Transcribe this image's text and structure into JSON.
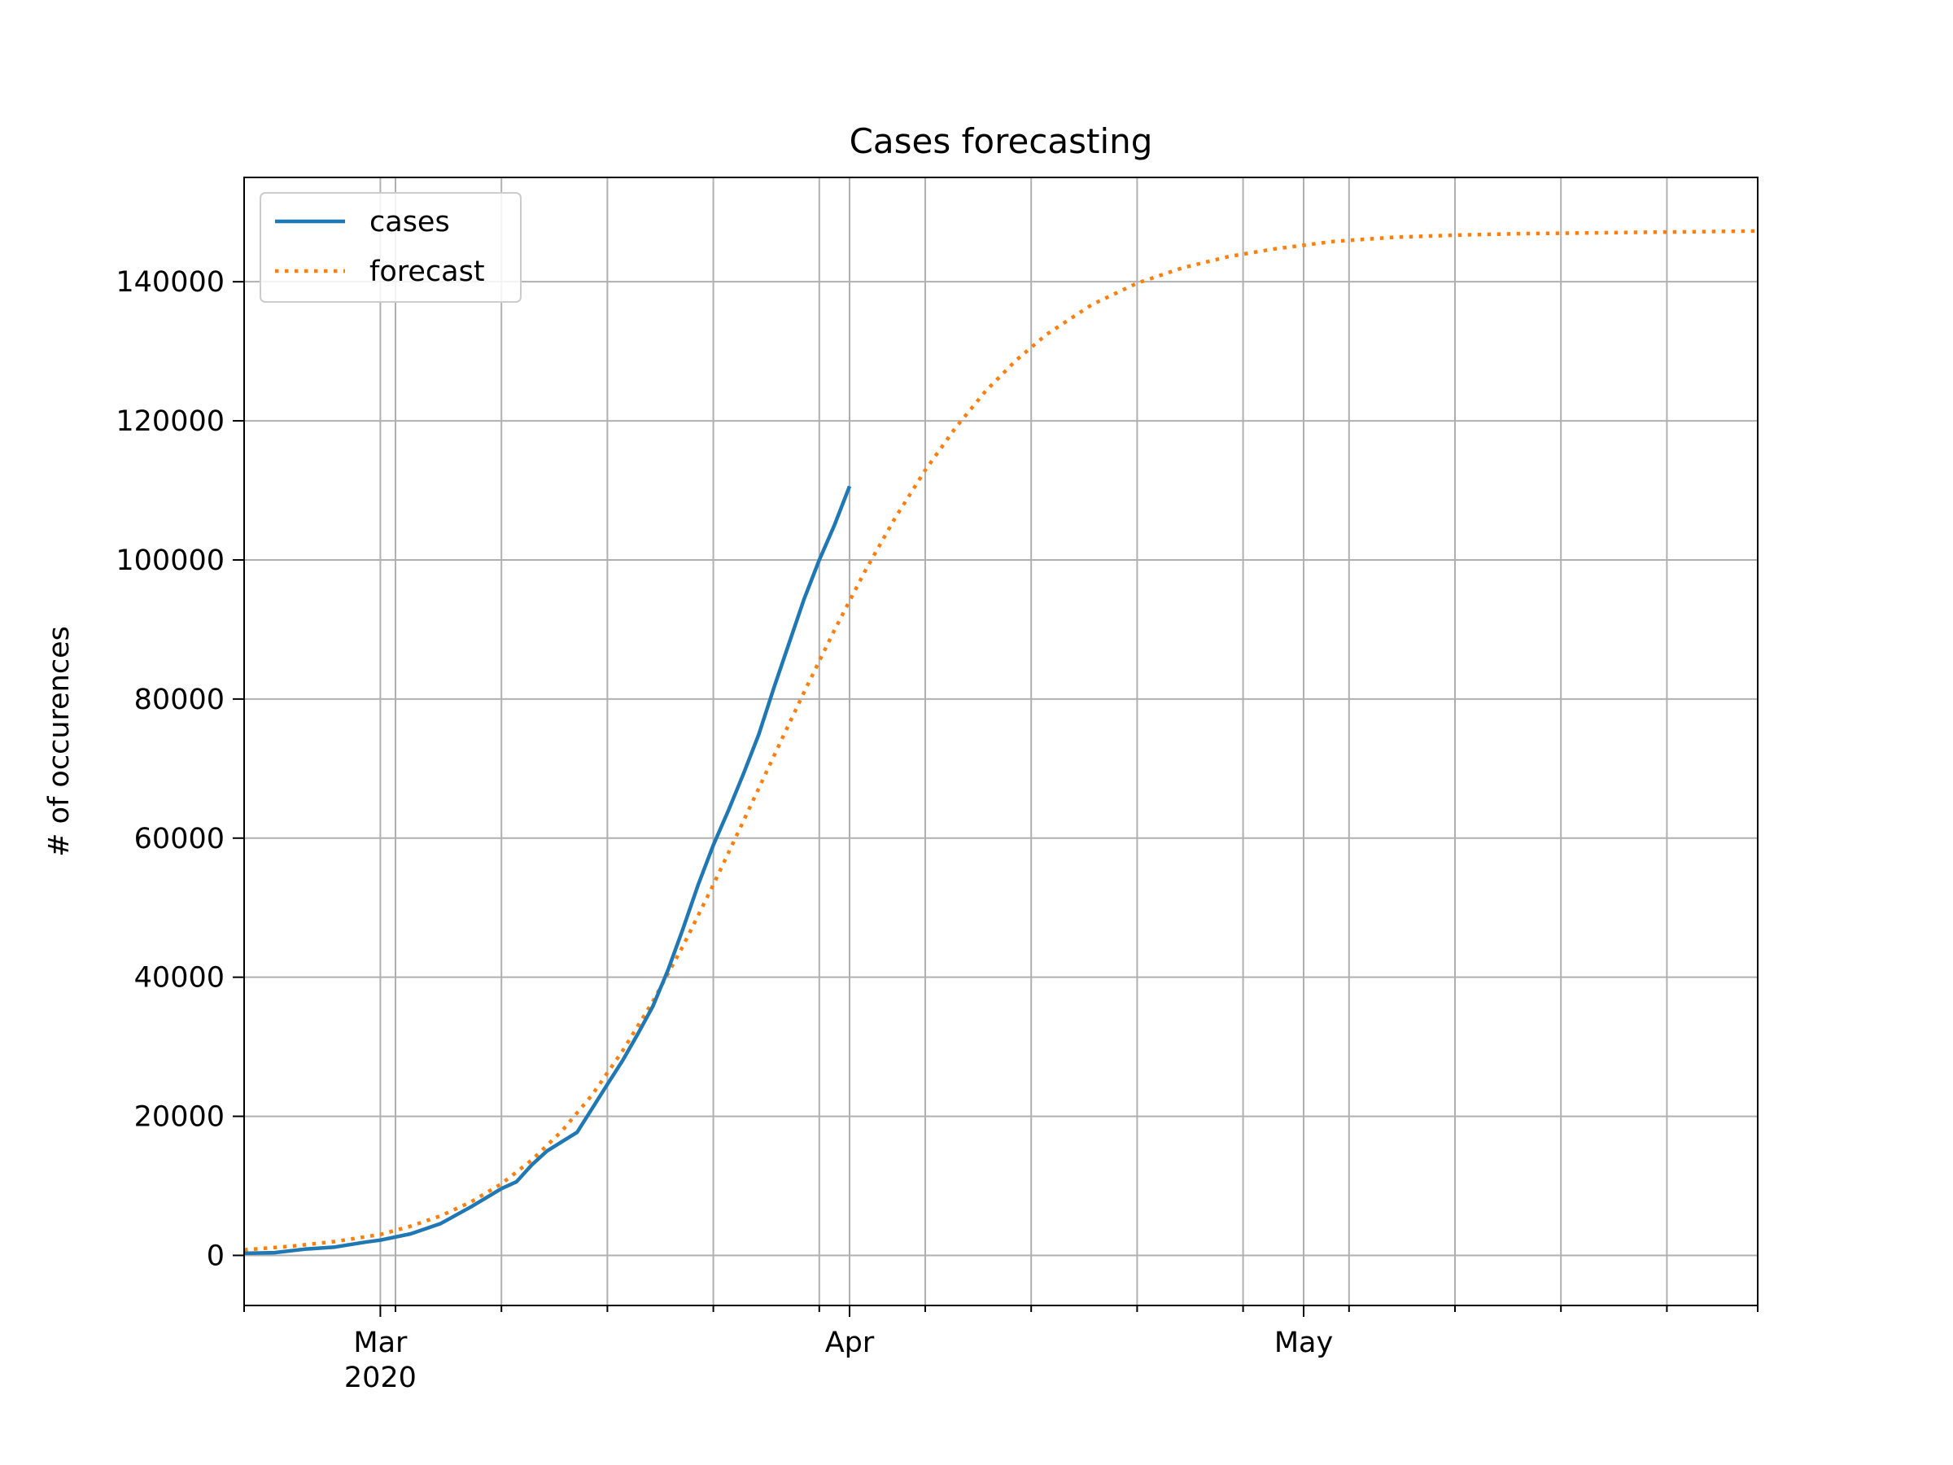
{
  "chart_data": {
    "type": "line",
    "title": "Cases forecasting",
    "xlabel": "",
    "ylabel": "# of occurences",
    "x_axis_type": "date",
    "xlim": [
      "2020-02-21",
      "2020-05-31"
    ],
    "ylim": [
      -7200,
      155000
    ],
    "grid": true,
    "legend_placement": "top-left",
    "x_major_ticks": [
      {
        "date": "2020-03-01",
        "label": "Mar",
        "sublabel": "2020"
      },
      {
        "date": "2020-04-01",
        "label": "Apr",
        "sublabel": ""
      },
      {
        "date": "2020-05-01",
        "label": "May",
        "sublabel": ""
      }
    ],
    "x_minor_ticks": [
      "2020-02-21",
      "2020-03-02",
      "2020-03-09",
      "2020-03-16",
      "2020-03-23",
      "2020-03-30",
      "2020-04-06",
      "2020-04-13",
      "2020-04-20",
      "2020-04-27",
      "2020-05-04",
      "2020-05-11",
      "2020-05-18",
      "2020-05-25",
      "2020-05-31"
    ],
    "y_ticks": [
      0,
      20000,
      40000,
      60000,
      80000,
      100000,
      120000,
      140000
    ],
    "y_tick_labels": [
      "0",
      "20000",
      "40000",
      "60000",
      "80000",
      "100000",
      "120000",
      "140000"
    ],
    "series": [
      {
        "name": "cases",
        "color": "#1f77b4",
        "style": "solid",
        "x": [
          "2020-02-21",
          "2020-02-23",
          "2020-02-25",
          "2020-02-27",
          "2020-02-29",
          "2020-03-01",
          "2020-03-03",
          "2020-03-05",
          "2020-03-07",
          "2020-03-09",
          "2020-03-10",
          "2020-03-11",
          "2020-03-12",
          "2020-03-14",
          "2020-03-16",
          "2020-03-17",
          "2020-03-18",
          "2020-03-19",
          "2020-03-20",
          "2020-03-21",
          "2020-03-22",
          "2020-03-23",
          "2020-03-24",
          "2020-03-25",
          "2020-03-26",
          "2020-03-27",
          "2020-03-28",
          "2020-03-29",
          "2020-03-30",
          "2020-03-31",
          "2020-04-01"
        ],
        "values": [
          300,
          400,
          900,
          1200,
          1900,
          2200,
          3100,
          4600,
          7000,
          9600,
          10600,
          13000,
          15000,
          17700,
          24600,
          28000,
          31800,
          35800,
          41000,
          47000,
          53300,
          59000,
          64000,
          69300,
          74900,
          81600,
          88000,
          94400,
          100000,
          105000,
          110600
        ]
      },
      {
        "name": "forecast",
        "color": "#ff7f0e",
        "style": "dotted",
        "x": [
          "2020-02-21",
          "2020-02-24",
          "2020-02-27",
          "2020-03-01",
          "2020-03-03",
          "2020-03-05",
          "2020-03-07",
          "2020-03-09",
          "2020-03-11",
          "2020-03-13",
          "2020-03-15",
          "2020-03-17",
          "2020-03-19",
          "2020-03-21",
          "2020-03-23",
          "2020-03-25",
          "2020-03-27",
          "2020-03-29",
          "2020-03-31",
          "2020-04-02",
          "2020-04-04",
          "2020-04-06",
          "2020-04-08",
          "2020-04-10",
          "2020-04-12",
          "2020-04-14",
          "2020-04-17",
          "2020-04-20",
          "2020-04-23",
          "2020-04-26",
          "2020-04-29",
          "2020-05-03",
          "2020-05-07",
          "2020-05-11",
          "2020-05-15",
          "2020-05-19",
          "2020-05-23",
          "2020-05-27",
          "2020-05-31"
        ],
        "values": [
          800,
          1300,
          2000,
          3000,
          4200,
          5700,
          7700,
          10300,
          13700,
          17900,
          23100,
          29400,
          36500,
          44500,
          53300,
          62500,
          71800,
          81000,
          89900,
          98300,
          106000,
          112900,
          119000,
          124300,
          128700,
          132400,
          136700,
          139800,
          142000,
          143600,
          144700,
          145800,
          146400,
          146700,
          146900,
          147000,
          147100,
          147200,
          147300
        ]
      }
    ]
  }
}
